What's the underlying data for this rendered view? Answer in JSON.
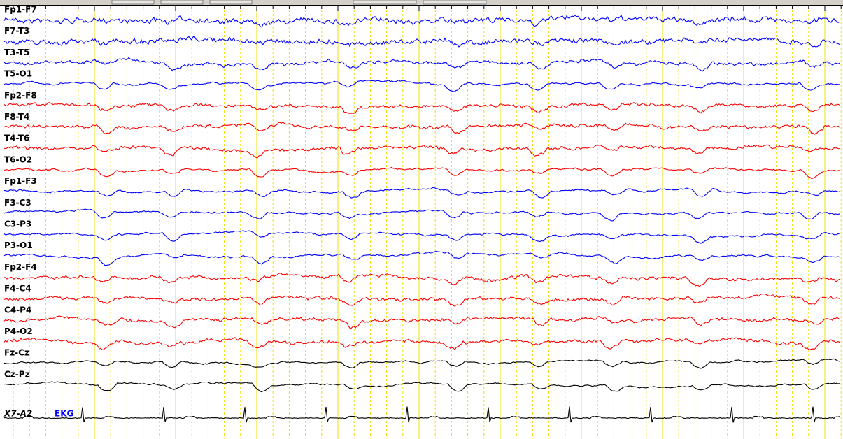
{
  "channels": [
    {
      "label": "Fp1-F7",
      "color": "#0000ff",
      "kind": "fast"
    },
    {
      "label": "F7-T3",
      "color": "#0000ff",
      "kind": "fast"
    },
    {
      "label": "T3-T5",
      "color": "#0000ff",
      "kind": "mid"
    },
    {
      "label": "T5-O1",
      "color": "#0000ff",
      "kind": "slow"
    },
    {
      "label": "Fp2-F8",
      "color": "#ff0000",
      "kind": "mid"
    },
    {
      "label": "F8-T4",
      "color": "#ff0000",
      "kind": "mid"
    },
    {
      "label": "T4-T6",
      "color": "#ff0000",
      "kind": "mid"
    },
    {
      "label": "T6-O2",
      "color": "#ff0000",
      "kind": "slow"
    },
    {
      "label": "Fp1-F3",
      "color": "#0000ff",
      "kind": "slow"
    },
    {
      "label": "F3-C3",
      "color": "#0000ff",
      "kind": "slow"
    },
    {
      "label": "C3-P3",
      "color": "#0000ff",
      "kind": "slow"
    },
    {
      "label": "P3-O1",
      "color": "#0000ff",
      "kind": "slow"
    },
    {
      "label": "Fp2-F4",
      "color": "#ff0000",
      "kind": "mid"
    },
    {
      "label": "F4-C4",
      "color": "#ff0000",
      "kind": "mid"
    },
    {
      "label": "C4-P4",
      "color": "#ff0000",
      "kind": "mid"
    },
    {
      "label": "P4-O2",
      "color": "#ff0000",
      "kind": "mid"
    },
    {
      "label": "Fz-Cz",
      "color": "#000000",
      "kind": "smooth"
    },
    {
      "label": "Cz-Pz",
      "color": "#000000",
      "kind": "smooth"
    },
    {
      "label": "X7-A2",
      "color": "#000000",
      "kind": "ekg"
    }
  ],
  "ekg_label": "EKG"
}
